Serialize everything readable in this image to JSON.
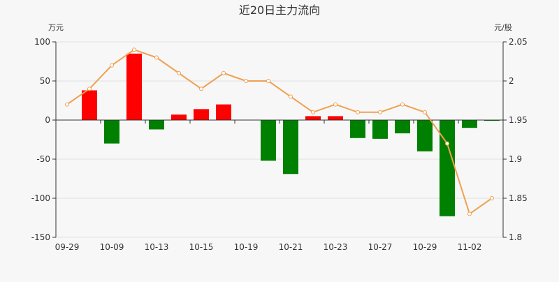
{
  "chart_data": {
    "type": "bar+line",
    "title": "近20日主力流向",
    "left_axis": {
      "unit": "万元",
      "ticks": [
        100,
        50,
        0,
        -50,
        -100,
        -150
      ],
      "ylim": [
        -150,
        100
      ]
    },
    "right_axis": {
      "unit": "元/股",
      "ticks": [
        "2.05",
        "2",
        "1.95",
        "1.9",
        "1.85",
        "1.8"
      ],
      "ylim": [
        1.8,
        2.05
      ]
    },
    "x_tick_labels": [
      "09-29",
      "10-09",
      "10-13",
      "10-15",
      "10-19",
      "10-21",
      "10-23",
      "10-27",
      "10-29",
      "11-02"
    ],
    "bars": [
      0,
      38,
      -30,
      85,
      -12,
      7,
      14,
      20,
      0,
      -52,
      -69,
      5,
      5,
      -23,
      -24,
      -17,
      -40,
      -123,
      -10,
      -1
    ],
    "line": [
      1.97,
      1.99,
      2.02,
      2.04,
      2.03,
      2.01,
      1.99,
      2.01,
      2.0,
      2.0,
      1.98,
      1.96,
      1.97,
      1.96,
      1.96,
      1.97,
      1.96,
      1.92,
      1.83,
      1.85
    ],
    "colors": {
      "positive": "#ff0000",
      "negative": "#008000",
      "line": "#f0a050",
      "axis": "#333333",
      "grid": "#e0e0e0"
    },
    "grid": true
  }
}
